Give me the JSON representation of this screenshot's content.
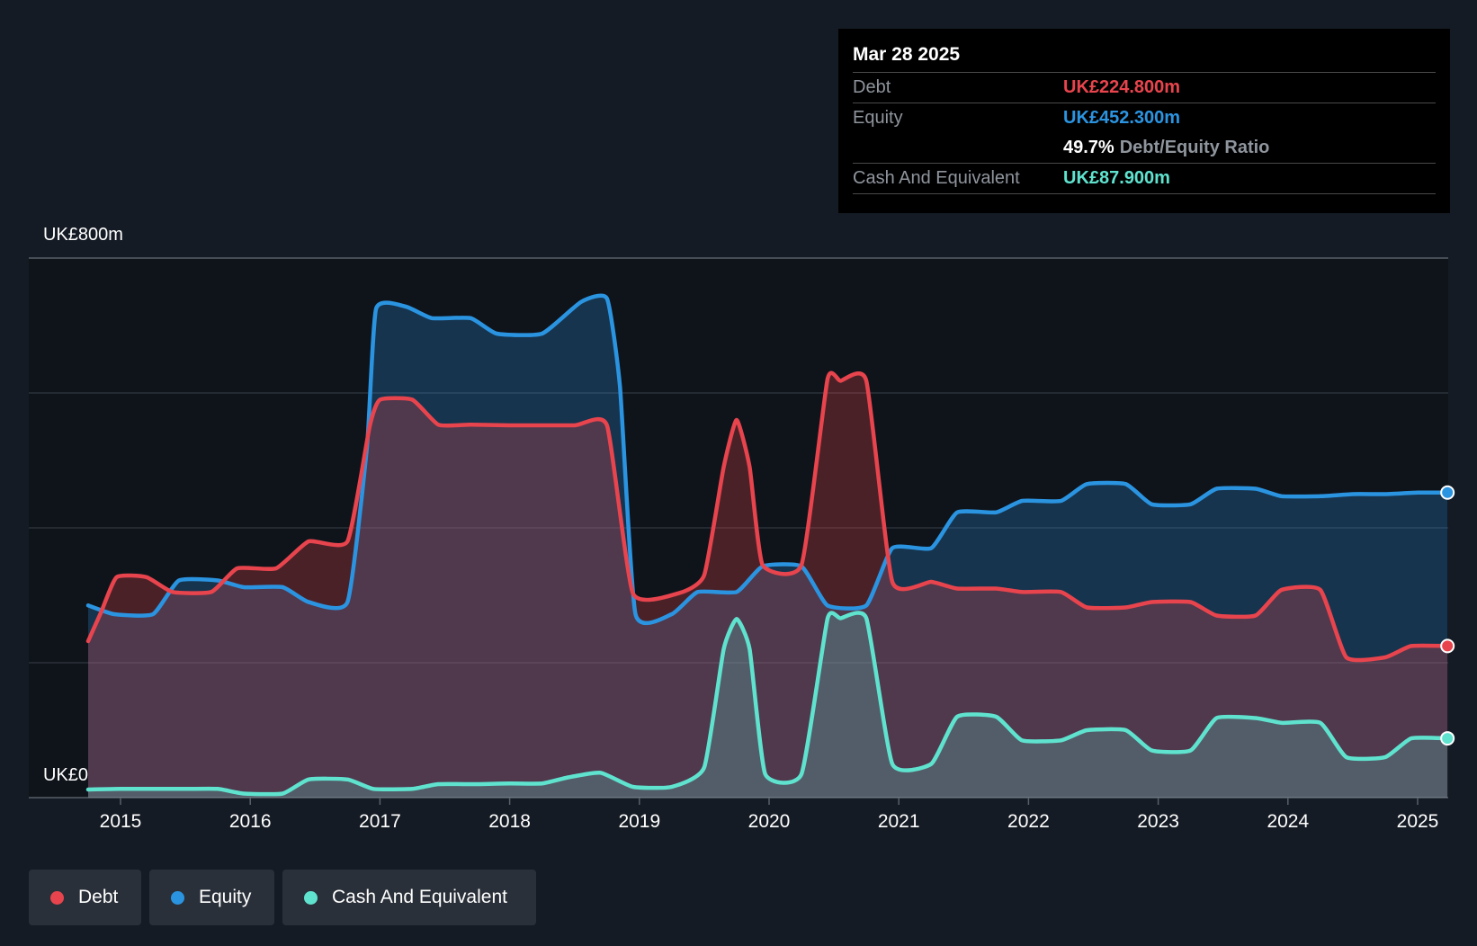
{
  "chart_data": {
    "type": "area",
    "currency_unit": "UK£m",
    "y_axis_labels": [
      "UK£800m",
      "UK£0"
    ],
    "ylim": [
      0,
      800
    ],
    "x_tick_labels": [
      "2015",
      "2016",
      "2017",
      "2018",
      "2019",
      "2020",
      "2021",
      "2022",
      "2023",
      "2024",
      "2025"
    ],
    "grid": true,
    "legend_position": "bottom-left",
    "series": [
      {
        "name": "Debt",
        "color": "#e8444d",
        "points": [
          [
            2014.75,
            232
          ],
          [
            2014.85,
            275
          ],
          [
            2014.97,
            327
          ],
          [
            2015.2,
            327
          ],
          [
            2015.4,
            305
          ],
          [
            2015.7,
            305
          ],
          [
            2015.9,
            340
          ],
          [
            2016.2,
            340
          ],
          [
            2016.45,
            380
          ],
          [
            2016.75,
            380
          ],
          [
            2016.92,
            550
          ],
          [
            2017.0,
            590
          ],
          [
            2017.25,
            590
          ],
          [
            2017.45,
            553
          ],
          [
            2017.7,
            553
          ],
          [
            2018.0,
            552
          ],
          [
            2018.5,
            552
          ],
          [
            2018.75,
            552
          ],
          [
            2018.95,
            303
          ],
          [
            2019.3,
            303
          ],
          [
            2019.5,
            330
          ],
          [
            2019.65,
            490
          ],
          [
            2019.75,
            560
          ],
          [
            2019.85,
            490
          ],
          [
            2019.95,
            345
          ],
          [
            2020.25,
            345
          ],
          [
            2020.45,
            620
          ],
          [
            2020.55,
            618
          ],
          [
            2020.75,
            618
          ],
          [
            2020.95,
            320
          ],
          [
            2021.25,
            320
          ],
          [
            2021.45,
            310
          ],
          [
            2021.75,
            310
          ],
          [
            2021.95,
            305
          ],
          [
            2022.25,
            305
          ],
          [
            2022.45,
            282
          ],
          [
            2022.75,
            282
          ],
          [
            2022.95,
            290
          ],
          [
            2023.25,
            290
          ],
          [
            2023.45,
            270
          ],
          [
            2023.75,
            270
          ],
          [
            2023.95,
            308
          ],
          [
            2024.25,
            308
          ],
          [
            2024.45,
            208
          ],
          [
            2024.75,
            208
          ],
          [
            2024.95,
            224.8
          ],
          [
            2025.23,
            224.8
          ]
        ]
      },
      {
        "name": "Equity",
        "color": "#2b94e1",
        "points": [
          [
            2014.75,
            285
          ],
          [
            2014.95,
            272
          ],
          [
            2015.25,
            272
          ],
          [
            2015.45,
            322
          ],
          [
            2015.75,
            322
          ],
          [
            2015.95,
            312
          ],
          [
            2016.25,
            312
          ],
          [
            2016.45,
            290
          ],
          [
            2016.75,
            290
          ],
          [
            2016.9,
            520
          ],
          [
            2016.97,
            725
          ],
          [
            2017.2,
            728
          ],
          [
            2017.4,
            711
          ],
          [
            2017.7,
            711
          ],
          [
            2017.9,
            688
          ],
          [
            2018.25,
            688
          ],
          [
            2018.55,
            735
          ],
          [
            2018.75,
            740
          ],
          [
            2018.85,
            610
          ],
          [
            2018.97,
            272
          ],
          [
            2019.25,
            272
          ],
          [
            2019.45,
            305
          ],
          [
            2019.75,
            305
          ],
          [
            2019.95,
            343
          ],
          [
            2020.25,
            343
          ],
          [
            2020.45,
            285
          ],
          [
            2020.75,
            285
          ],
          [
            2020.95,
            370
          ],
          [
            2021.25,
            370
          ],
          [
            2021.45,
            423
          ],
          [
            2021.75,
            423
          ],
          [
            2021.95,
            440
          ],
          [
            2022.25,
            440
          ],
          [
            2022.45,
            465
          ],
          [
            2022.75,
            465
          ],
          [
            2022.95,
            435
          ],
          [
            2023.25,
            435
          ],
          [
            2023.45,
            458
          ],
          [
            2023.75,
            458
          ],
          [
            2023.95,
            447
          ],
          [
            2024.25,
            447
          ],
          [
            2024.5,
            450
          ],
          [
            2024.75,
            450
          ],
          [
            2025.0,
            452.3
          ],
          [
            2025.23,
            452.3
          ]
        ]
      },
      {
        "name": "Cash And Equivalent",
        "color": "#5fe3cf",
        "points": [
          [
            2014.75,
            12
          ],
          [
            2015.0,
            13
          ],
          [
            2015.5,
            13
          ],
          [
            2015.75,
            13
          ],
          [
            2015.95,
            6
          ],
          [
            2016.25,
            6
          ],
          [
            2016.45,
            27
          ],
          [
            2016.75,
            27
          ],
          [
            2016.95,
            13
          ],
          [
            2017.25,
            13
          ],
          [
            2017.45,
            20
          ],
          [
            2017.75,
            20
          ],
          [
            2018.0,
            21
          ],
          [
            2018.25,
            21
          ],
          [
            2018.45,
            30
          ],
          [
            2018.7,
            37
          ],
          [
            2018.95,
            16
          ],
          [
            2019.25,
            16
          ],
          [
            2019.5,
            45
          ],
          [
            2019.65,
            220
          ],
          [
            2019.75,
            265
          ],
          [
            2019.85,
            220
          ],
          [
            2019.97,
            35
          ],
          [
            2020.25,
            35
          ],
          [
            2020.45,
            265
          ],
          [
            2020.55,
            266
          ],
          [
            2020.75,
            266
          ],
          [
            2020.95,
            50
          ],
          [
            2021.25,
            50
          ],
          [
            2021.45,
            120
          ],
          [
            2021.75,
            120
          ],
          [
            2021.95,
            85
          ],
          [
            2022.25,
            85
          ],
          [
            2022.45,
            100
          ],
          [
            2022.75,
            100
          ],
          [
            2022.95,
            70
          ],
          [
            2023.25,
            70
          ],
          [
            2023.45,
            118
          ],
          [
            2023.75,
            118
          ],
          [
            2023.95,
            111
          ],
          [
            2024.25,
            111
          ],
          [
            2024.45,
            60
          ],
          [
            2024.75,
            60
          ],
          [
            2024.95,
            87.9
          ],
          [
            2025.23,
            87.9
          ]
        ]
      }
    ]
  },
  "tooltip": {
    "date": "Mar 28 2025",
    "debt_label": "Debt",
    "debt_value": "UK£224.800m",
    "equity_label": "Equity",
    "equity_value": "UK£452.300m",
    "ratio_value": "49.7%",
    "ratio_label": "Debt/Equity Ratio",
    "cash_label": "Cash And Equivalent",
    "cash_value": "UK£87.900m"
  },
  "legend": [
    {
      "label": "Debt",
      "color": "#e8444d"
    },
    {
      "label": "Equity",
      "color": "#2b94e1"
    },
    {
      "label": "Cash And Equivalent",
      "color": "#5fe3cf"
    }
  ]
}
